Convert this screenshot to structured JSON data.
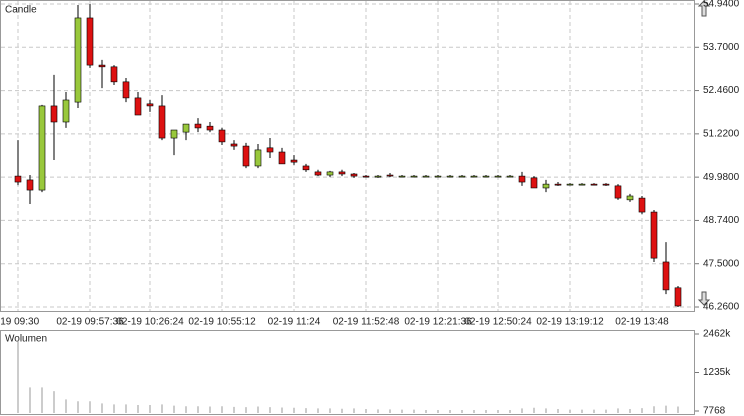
{
  "chart_data": [
    {
      "type": "candlestick",
      "title": "Candle",
      "up_color": "#99c83c",
      "down_color": "#dd1111",
      "grid": true,
      "categories": [
        "-19 09:30",
        null,
        null,
        null,
        null,
        null,
        "02-19 09:57:36",
        null,
        null,
        null,
        null,
        "02-19 10:26:24",
        null,
        null,
        null,
        null,
        null,
        "02-19 10:55:12",
        null,
        null,
        null,
        null,
        null,
        "02-19 11:24",
        null,
        null,
        null,
        null,
        null,
        "02-19 11:52:48",
        null,
        null,
        null,
        null,
        null,
        "02-19 12:21:36",
        null,
        null,
        null,
        null,
        "02-19 12:50:24",
        null,
        null,
        null,
        null,
        null,
        "02-19 13:19:12",
        null,
        null,
        null,
        null,
        null,
        "02-19 13:48",
        null,
        null,
        null
      ],
      "open": [
        50.01,
        49.9,
        49.61,
        52.02,
        51.56,
        52.13,
        54.54,
        53.19,
        53.14,
        52.71,
        52.25,
        52.08,
        52.02,
        51.1,
        51.27,
        51.5,
        51.44,
        51.33,
        50.93,
        50.87,
        50.3,
        50.82,
        50.7,
        50.47,
        50.3,
        50.13,
        50.04,
        50.13,
        50.07,
        50.01,
        49.98,
        50.04,
        50.01,
        50.01,
        50.01,
        50.01,
        50.01,
        50.01,
        50.01,
        50.01,
        50.01,
        50.01,
        50.01,
        49.96,
        49.67,
        49.78,
        49.78,
        49.78,
        49.78,
        49.78,
        49.73,
        49.33,
        49.38,
        48.98,
        47.55,
        46.81
      ],
      "high": [
        51.04,
        50.04,
        52.05,
        52.91,
        52.42,
        54.91,
        54.94,
        53.34,
        53.19,
        52.82,
        52.42,
        52.19,
        52.33,
        51.33,
        51.5,
        51.67,
        51.56,
        51.39,
        51.04,
        50.96,
        50.93,
        51.1,
        50.82,
        50.61,
        50.36,
        50.19,
        50.16,
        50.19,
        50.1,
        50.04,
        50.04,
        50.1,
        50.04,
        50.04,
        50.04,
        50.04,
        50.04,
        50.04,
        50.04,
        50.04,
        50.04,
        50.04,
        50.13,
        50.01,
        49.9,
        49.84,
        49.81,
        49.81,
        49.81,
        49.81,
        49.78,
        49.5,
        49.44,
        49.04,
        48.12,
        46.86
      ],
      "low": [
        49.75,
        49.21,
        49.55,
        50.47,
        51.39,
        51.96,
        53.11,
        52.53,
        52.62,
        52.13,
        51.76,
        51.85,
        51.04,
        50.61,
        51.04,
        51.27,
        51.27,
        50.9,
        50.76,
        50.24,
        50.24,
        50.53,
        50.36,
        50.33,
        50.13,
        50.01,
        49.98,
        50.01,
        49.96,
        49.98,
        49.96,
        49.98,
        49.98,
        49.98,
        49.98,
        49.98,
        49.98,
        49.98,
        49.98,
        49.98,
        49.98,
        49.98,
        49.73,
        49.67,
        49.55,
        49.73,
        49.75,
        49.75,
        49.75,
        49.73,
        49.33,
        49.27,
        48.92,
        47.55,
        46.63,
        46.26
      ],
      "close": [
        49.84,
        49.61,
        52.02,
        51.56,
        52.19,
        54.54,
        53.19,
        53.14,
        52.71,
        52.25,
        51.76,
        52.02,
        51.1,
        51.33,
        51.5,
        51.39,
        51.33,
        50.99,
        50.87,
        50.3,
        50.76,
        50.7,
        50.36,
        50.41,
        50.19,
        50.04,
        50.13,
        50.07,
        50.01,
        49.98,
        50.01,
        50.01,
        50.01,
        50.01,
        50.01,
        50.01,
        50.01,
        50.01,
        50.01,
        50.01,
        50.01,
        50.01,
        49.84,
        49.67,
        49.78,
        49.75,
        49.78,
        49.78,
        49.75,
        49.75,
        49.38,
        49.44,
        48.98,
        47.66,
        46.75,
        46.29
      ],
      "ylim": [
        46.26,
        54.94
      ],
      "yticks": [
        {
          "value": 54.94,
          "label": "54.9400"
        },
        {
          "value": 53.7,
          "label": "53.7000"
        },
        {
          "value": 52.46,
          "label": "52.4600"
        },
        {
          "value": 51.22,
          "label": "51.2200"
        },
        {
          "value": 49.98,
          "label": "49.9800"
        },
        {
          "value": 48.74,
          "label": "48.7400"
        },
        {
          "value": 47.5,
          "label": "47.5000"
        },
        {
          "value": 46.26,
          "label": "46.2600"
        }
      ]
    },
    {
      "type": "bar",
      "title": "Wolumen",
      "color": "#9a9a9a",
      "values": [
        2270000,
        760000,
        760000,
        640000,
        380000,
        320000,
        320000,
        250000,
        220000,
        220000,
        200000,
        200000,
        220000,
        180000,
        160000,
        160000,
        150000,
        160000,
        140000,
        130000,
        150000,
        130000,
        120000,
        110000,
        100000,
        90000,
        90000,
        80000,
        90000,
        70000,
        60000,
        60000,
        50000,
        50000,
        40000,
        40000,
        40000,
        40000,
        40000,
        40000,
        40000,
        40000,
        90000,
        110000,
        90000,
        70000,
        50000,
        50000,
        50000,
        50000,
        90000,
        70000,
        100000,
        160000,
        180000,
        150000
      ],
      "ylim": [
        7768,
        2462000
      ],
      "yticks": [
        {
          "value": 2462000,
          "label": "2462k"
        },
        {
          "value": 1235000,
          "label": "1235k"
        },
        7768
      ]
    }
  ]
}
